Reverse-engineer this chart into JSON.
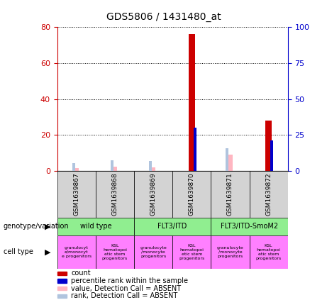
{
  "title": "GDS5806 / 1431480_at",
  "samples": [
    "GSM1639867",
    "GSM1639868",
    "GSM1639869",
    "GSM1639870",
    "GSM1639871",
    "GSM1639872"
  ],
  "count_values": [
    0,
    0,
    0,
    76,
    0,
    28
  ],
  "rank_values": [
    0,
    0,
    0,
    30,
    0,
    21
  ],
  "absent_value_values": [
    1.5,
    2.5,
    2.0,
    0,
    9.0,
    0
  ],
  "absent_rank_values": [
    5.5,
    7.5,
    7.0,
    0,
    16.0,
    0
  ],
  "left_ylim": [
    0,
    80
  ],
  "right_ylim": [
    0,
    100
  ],
  "left_yticks": [
    0,
    20,
    40,
    60,
    80
  ],
  "right_yticks": [
    0,
    25,
    50,
    75,
    100
  ],
  "geno_labels": [
    "wild type",
    "FLT3/ITD",
    "FLT3/ITD-SmoM2"
  ],
  "geno_ranges": [
    [
      0,
      2
    ],
    [
      2,
      4
    ],
    [
      4,
      6
    ]
  ],
  "geno_color": "#90EE90",
  "cell_labels": [
    "granulocyt\ne/monocyt\ne progenitors",
    "KSL\nhematopoi\netic stem\nprogenitors",
    "granulocyte\n/monocyte\nprogenitors",
    "KSL\nhematopoi\netic stem\nprogenitors",
    "granulocyte\n/monocyte\nprogenitors",
    "KSL\nhematopoi\netic stem\nprogenitors"
  ],
  "cell_color": "#FF80FF",
  "bar_width": 0.35,
  "count_color": "#CC0000",
  "rank_color": "#0000CC",
  "absent_value_color": "#FFB6C1",
  "absent_rank_color": "#B0C4DE",
  "grid_color": "black",
  "left_label_color": "#CC0000",
  "right_label_color": "#0000CC",
  "legend_items": [
    [
      "#CC0000",
      "count"
    ],
    [
      "#0000CC",
      "percentile rank within the sample"
    ],
    [
      "#FFB6C1",
      "value, Detection Call = ABSENT"
    ],
    [
      "#B0C4DE",
      "rank, Detection Call = ABSENT"
    ]
  ]
}
